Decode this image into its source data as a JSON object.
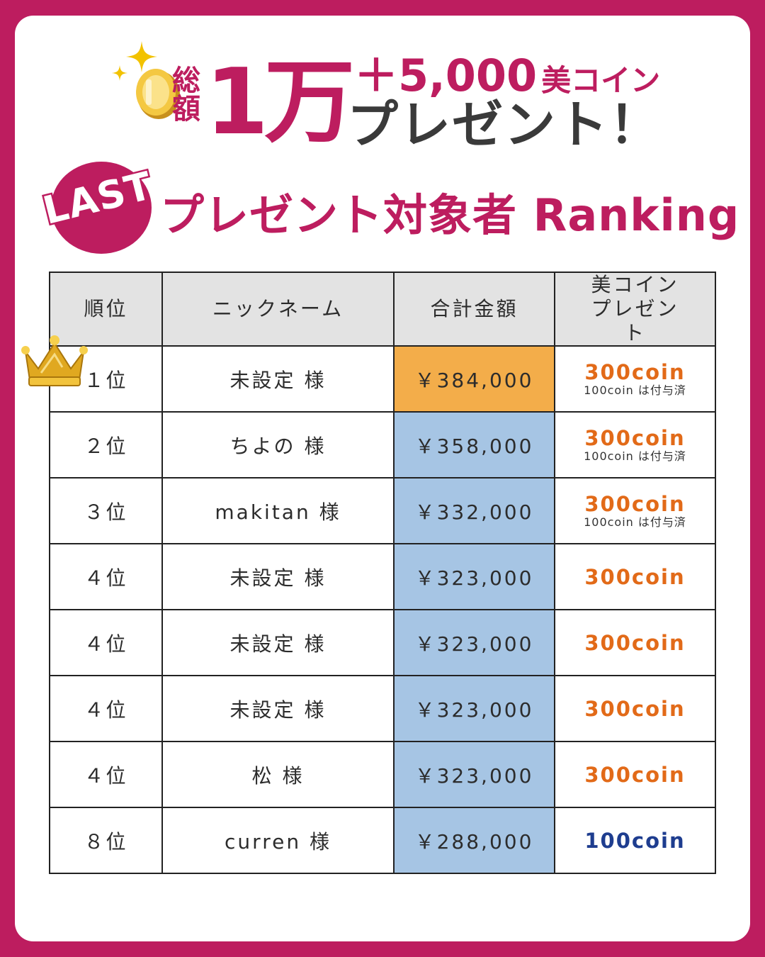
{
  "header": {
    "total_label": "総額",
    "main_amount": "1万",
    "bonus_amount": "＋5,000",
    "bonus_unit": "美コイン",
    "present_text": "プレゼント！",
    "last_label": "LAST",
    "ranking_title": "プレゼント対象者 Ranking"
  },
  "table": {
    "headers": [
      "順位",
      "ニックネーム",
      "合計金額",
      "美コインプレゼント"
    ],
    "rows": [
      {
        "rank": "１位",
        "name": "未設定 様",
        "amount": "￥384,000",
        "coin": "300coin",
        "note": "100coin は付与済"
      },
      {
        "rank": "２位",
        "name": "ちよの 様",
        "amount": "￥358,000",
        "coin": "300coin",
        "note": "100coin は付与済"
      },
      {
        "rank": "３位",
        "name": "makitan 様",
        "amount": "￥332,000",
        "coin": "300coin",
        "note": "100coin は付与済"
      },
      {
        "rank": "４位",
        "name": "未設定 様",
        "amount": "￥323,000",
        "coin": "300coin"
      },
      {
        "rank": "４位",
        "name": "未設定 様",
        "amount": "￥323,000",
        "coin": "300coin"
      },
      {
        "rank": "４位",
        "name": "未設定 様",
        "amount": "￥323,000",
        "coin": "300coin"
      },
      {
        "rank": "４位",
        "name": "松 様",
        "amount": "￥323,000",
        "coin": "300coin"
      },
      {
        "rank": "８位",
        "name": "curren 様",
        "amount": "￥288,000",
        "coin": "100coin"
      }
    ]
  },
  "colors": {
    "brand": "#bd1d5f",
    "first_amount_bg": "#f3ad4a",
    "amount_bg": "#a6c5e4",
    "coin_orange": "#e26a18",
    "coin_blue": "#1e3d8f"
  },
  "icons": [
    "sparkle-icon",
    "gold-coin-icon",
    "crown-icon"
  ]
}
